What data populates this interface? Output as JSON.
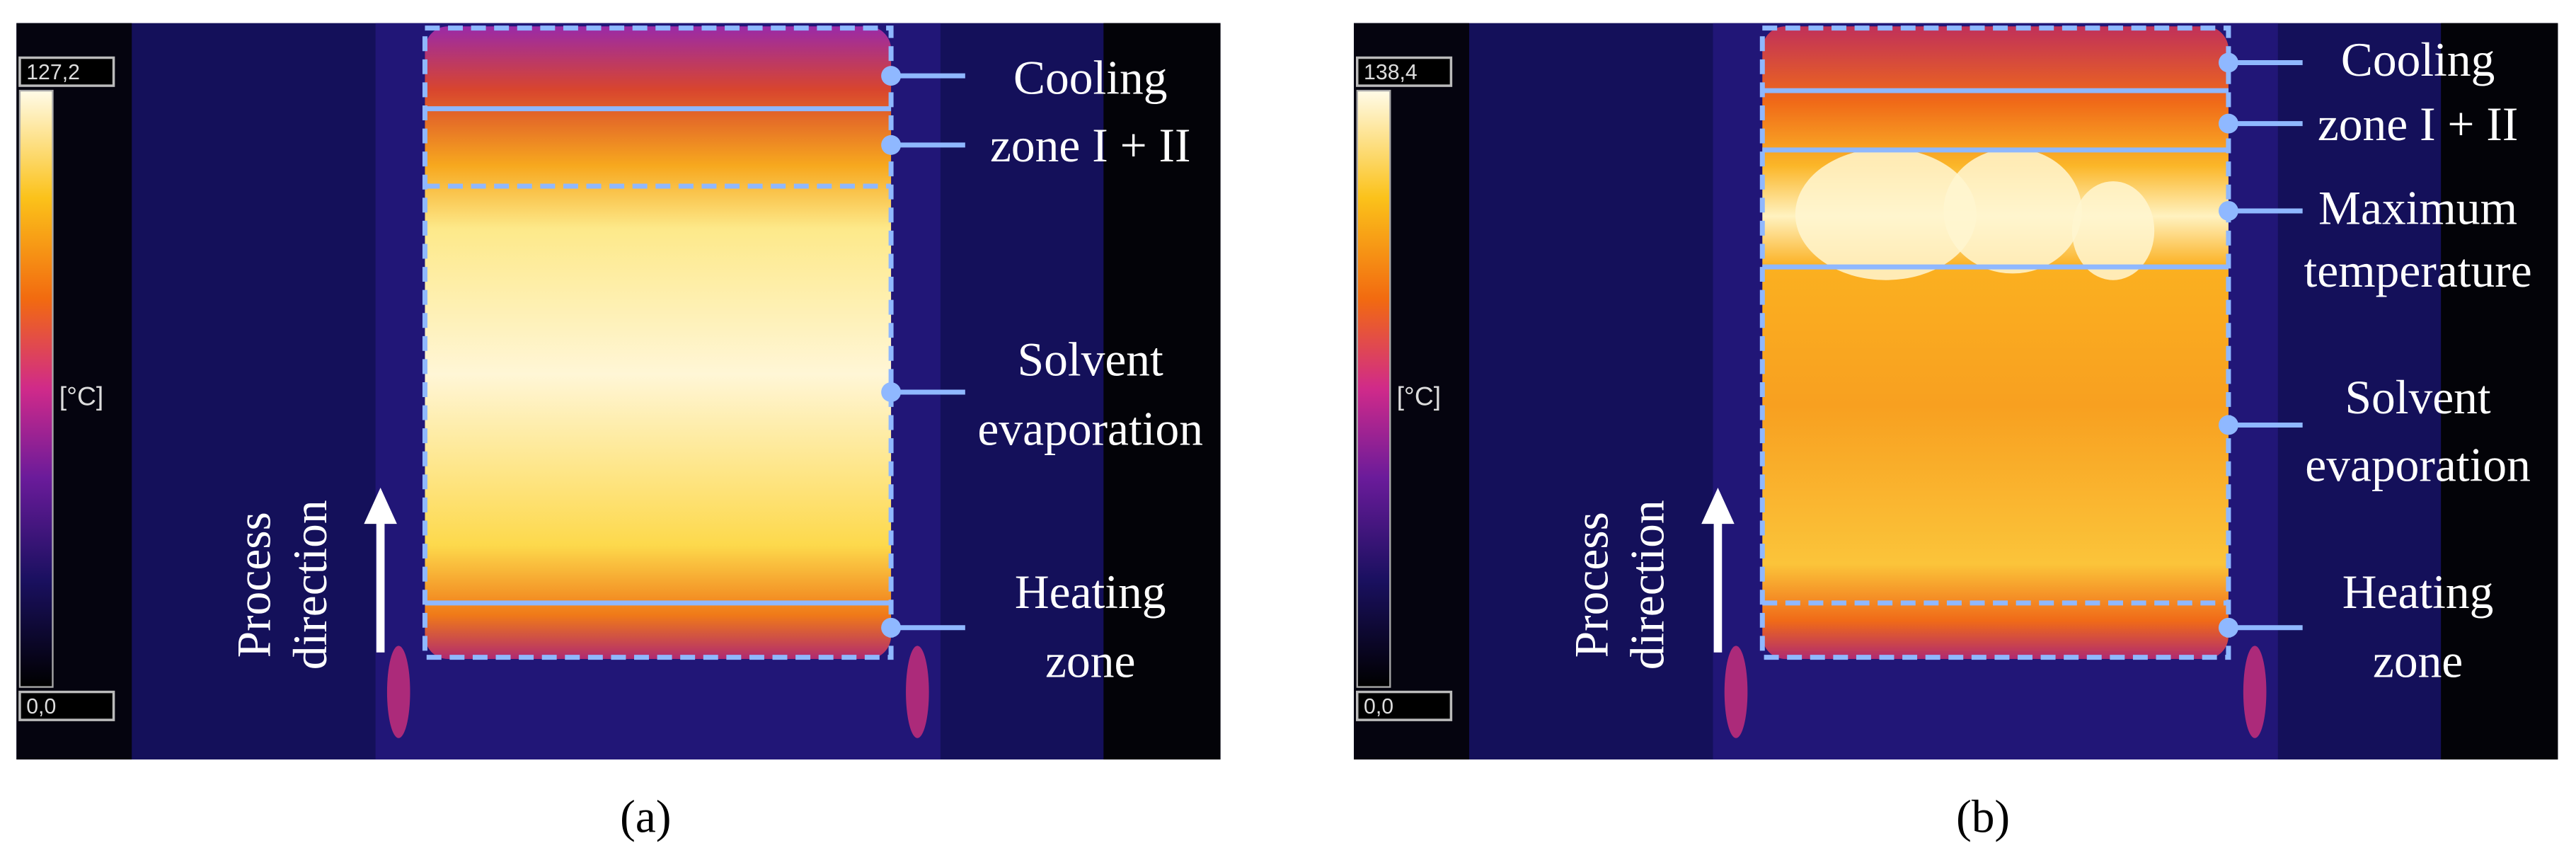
{
  "panels": [
    {
      "max_label": "127,2",
      "min_label": "0,0",
      "unit": "[°C]",
      "direction": [
        "Process",
        "direction"
      ],
      "zones": [
        [
          "Cooling",
          "zone I + II"
        ],
        [
          "Solvent",
          "evaporation"
        ],
        [
          "Heating",
          "zone"
        ]
      ],
      "caption": "(a)"
    },
    {
      "max_label": "138,4",
      "min_label": "0,0",
      "unit": "[°C]",
      "direction": [
        "Process",
        "direction"
      ],
      "zones": [
        [
          "Cooling",
          "zone I + II"
        ],
        [
          "Maximum",
          "temperature"
        ],
        [
          "Solvent",
          "evaporation"
        ],
        [
          "Heating",
          "zone"
        ]
      ],
      "caption": "(b)"
    }
  ]
}
